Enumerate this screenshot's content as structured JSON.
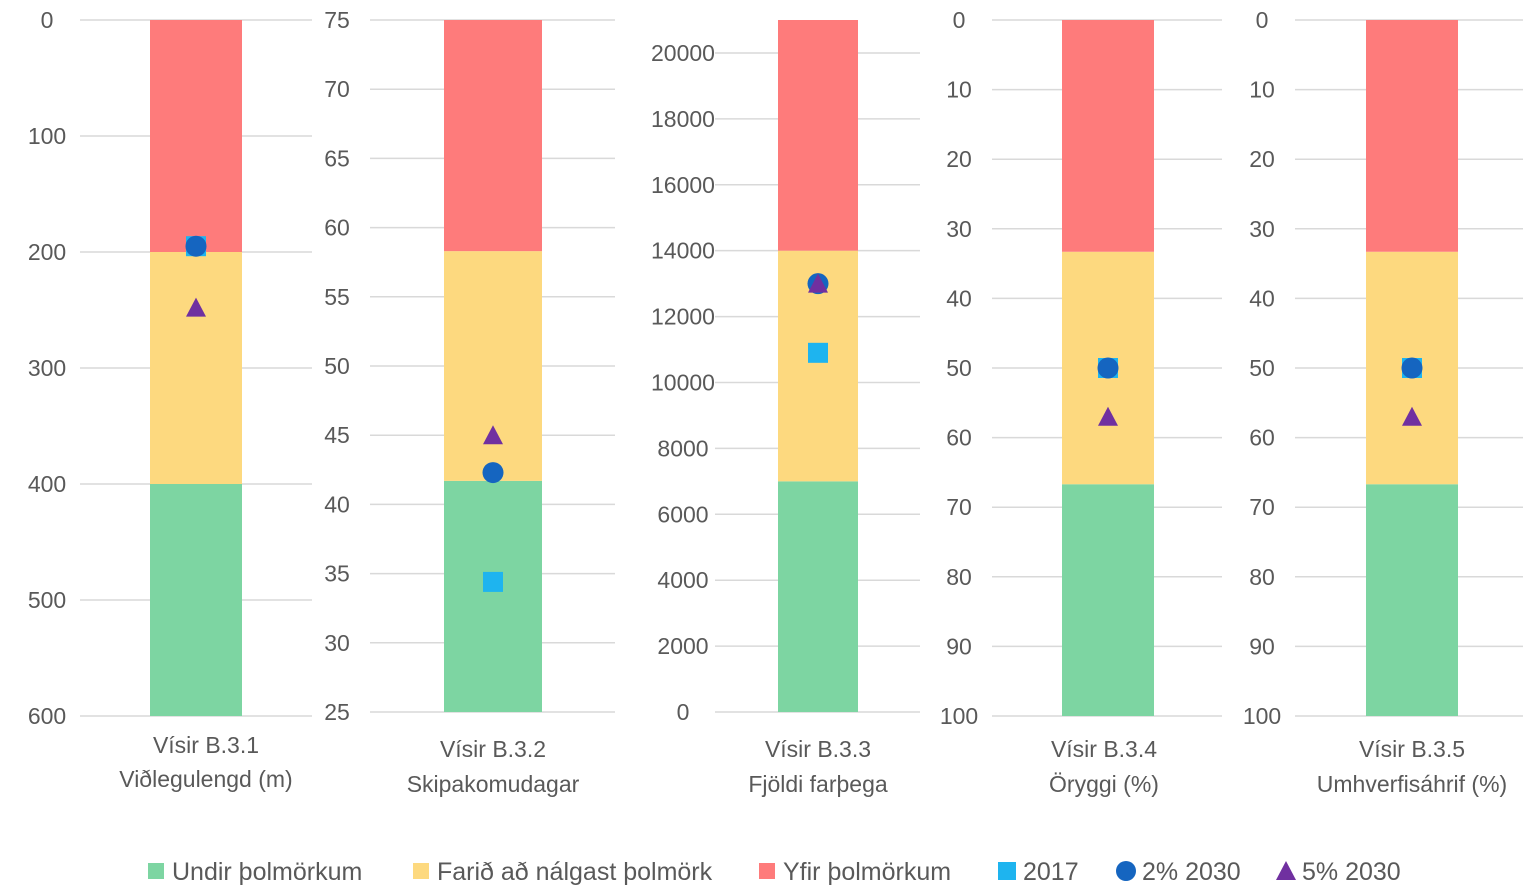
{
  "colors": {
    "green": "#7dd5a2",
    "yellow": "#fdd97f",
    "red": "#fe7b7b",
    "sq2017": "#1eb4ef",
    "c2030": "#1565c0",
    "t2030": "#7030a0",
    "grid": "#d9d9d9",
    "text": "#595959"
  },
  "legend": [
    {
      "key": "green",
      "label": "Undir þolmörkum",
      "shape": "rect"
    },
    {
      "key": "yellow",
      "label": "Farið að nálgast þolmörk",
      "shape": "rect"
    },
    {
      "key": "red",
      "label": "Yfir þolmörkum",
      "shape": "rect"
    },
    {
      "key": "sq2017",
      "label": "2017",
      "shape": "square"
    },
    {
      "key": "c2030",
      "label": "2% 2030",
      "shape": "circle"
    },
    {
      "key": "t2030",
      "label": "5% 2030",
      "shape": "triangle"
    }
  ],
  "chart_data": [
    {
      "type": "bar",
      "xlabel": [
        "Vísir B.3.1",
        "Viðlegulengd (m)"
      ],
      "ylim": [
        0,
        600
      ],
      "reversed": true,
      "ticks": [
        0,
        100,
        200,
        300,
        400,
        500,
        600
      ],
      "bands": {
        "green": [
          400,
          600
        ],
        "yellow": [
          200,
          400
        ],
        "red": [
          0,
          200
        ]
      },
      "markers": {
        "2017": 195,
        "2% 2030": 195,
        "5% 2030": 248
      }
    },
    {
      "type": "bar",
      "xlabel": [
        "Vísir B.3.2",
        "Skipakomudagar"
      ],
      "ylim": [
        25,
        75
      ],
      "reversed": false,
      "ticks": [
        25,
        30,
        35,
        40,
        45,
        50,
        55,
        60,
        65,
        70,
        75
      ],
      "bands": {
        "green": [
          25,
          41.7
        ],
        "yellow": [
          41.7,
          58.3
        ],
        "red": [
          58.3,
          75
        ]
      },
      "markers": {
        "2017": 34.4,
        "2% 2030": 42.3,
        "5% 2030": 45
      }
    },
    {
      "type": "bar",
      "xlabel": [
        "Vísir B.3.3",
        "Fjöldi farþega"
      ],
      "ylim": [
        0,
        21000
      ],
      "reversed": false,
      "ticks": [
        0,
        2000,
        4000,
        6000,
        8000,
        10000,
        12000,
        14000,
        16000,
        18000,
        20000
      ],
      "bands": {
        "green": [
          0,
          7000
        ],
        "yellow": [
          7000,
          14000
        ],
        "red": [
          14000,
          21000
        ]
      },
      "markers": {
        "2017": 10900,
        "2% 2030": 13000,
        "5% 2030": 13000
      }
    },
    {
      "type": "bar",
      "xlabel": [
        "Vísir B.3.4",
        "Öryggi (%)"
      ],
      "ylim": [
        0,
        100
      ],
      "reversed": true,
      "ticks": [
        0,
        10,
        20,
        30,
        40,
        50,
        60,
        70,
        80,
        90,
        100
      ],
      "bands": {
        "green": [
          66.7,
          100
        ],
        "yellow": [
          33.3,
          66.7
        ],
        "red": [
          0,
          33.3
        ]
      },
      "markers": {
        "2017": 50,
        "2% 2030": 50,
        "5% 2030": 57
      }
    },
    {
      "type": "bar",
      "xlabel": [
        "Vísir B.3.5",
        "Umhverfisáhrif (%)"
      ],
      "ylim": [
        0,
        100
      ],
      "reversed": true,
      "ticks": [
        0,
        10,
        20,
        30,
        40,
        50,
        60,
        70,
        80,
        90,
        100
      ],
      "bands": {
        "green": [
          66.7,
          100
        ],
        "yellow": [
          33.3,
          66.7
        ],
        "red": [
          0,
          33.3
        ]
      },
      "markers": {
        "2017": 50,
        "2% 2030": 50,
        "5% 2030": 57
      }
    }
  ]
}
